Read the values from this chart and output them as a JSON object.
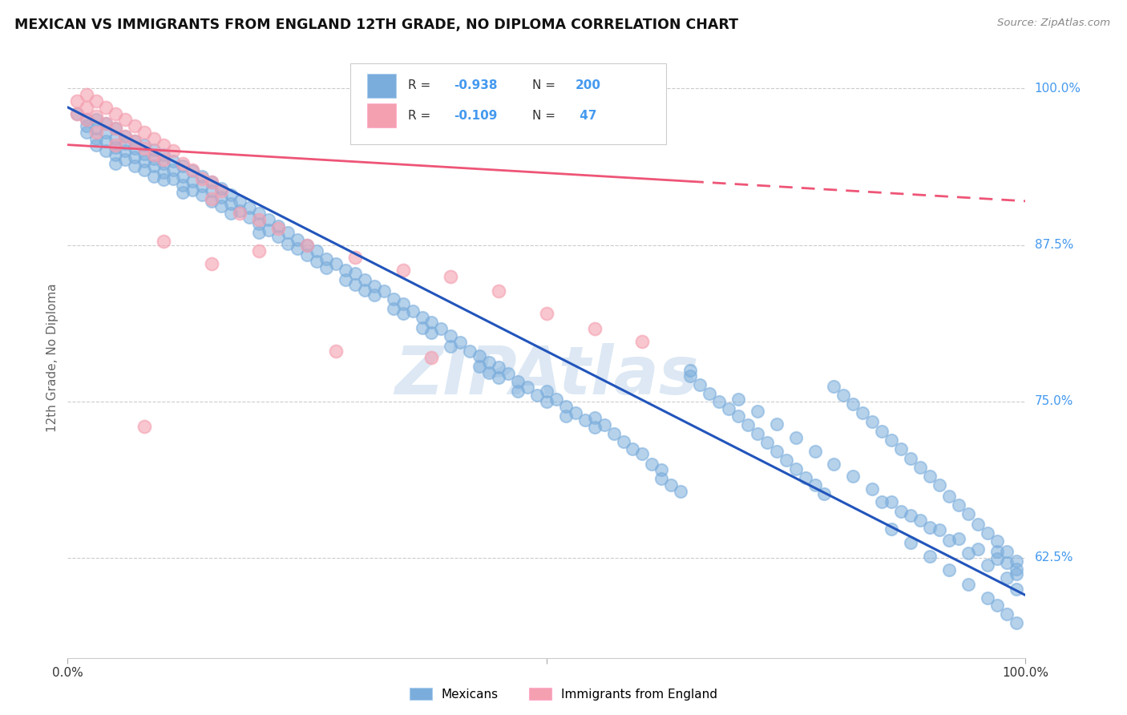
{
  "title": "MEXICAN VS IMMIGRANTS FROM ENGLAND 12TH GRADE, NO DIPLOMA CORRELATION CHART",
  "source": "Source: ZipAtlas.com",
  "ylabel": "12th Grade, No Diploma",
  "ylabel_right_ticks": [
    "100.0%",
    "87.5%",
    "75.0%",
    "62.5%"
  ],
  "ylabel_right_positions": [
    1.0,
    0.875,
    0.75,
    0.625
  ],
  "legend_label_blue": "Mexicans",
  "legend_label_pink": "Immigrants from England",
  "blue_color": "#7AADDC",
  "pink_color": "#F4A0B0",
  "trendline_blue_color": "#2255BB",
  "trendline_pink_color": "#EE5577",
  "watermark": "ZIPAtlas",
  "blue_r": "-0.938",
  "blue_n": "200",
  "pink_r": "-0.109",
  "pink_n": " 47",
  "xmin": 0.0,
  "xmax": 1.0,
  "ymin": 0.545,
  "ymax": 1.025,
  "blue_trend_x0": 0.0,
  "blue_trend_y0": 0.985,
  "blue_trend_x1": 1.0,
  "blue_trend_y1": 0.595,
  "pink_trend_x0": 0.0,
  "pink_trend_y0": 0.955,
  "pink_trend_x1": 1.0,
  "pink_trend_y1": 0.91,
  "pink_trend_solid_x1": 0.65,
  "blue_scatter_x": [
    0.01,
    0.02,
    0.02,
    0.02,
    0.03,
    0.03,
    0.03,
    0.03,
    0.04,
    0.04,
    0.04,
    0.04,
    0.05,
    0.05,
    0.05,
    0.05,
    0.05,
    0.06,
    0.06,
    0.06,
    0.06,
    0.07,
    0.07,
    0.07,
    0.07,
    0.08,
    0.08,
    0.08,
    0.08,
    0.09,
    0.09,
    0.09,
    0.09,
    0.1,
    0.1,
    0.1,
    0.1,
    0.11,
    0.11,
    0.11,
    0.12,
    0.12,
    0.12,
    0.12,
    0.13,
    0.13,
    0.13,
    0.14,
    0.14,
    0.14,
    0.15,
    0.15,
    0.15,
    0.16,
    0.16,
    0.16,
    0.17,
    0.17,
    0.17,
    0.18,
    0.18,
    0.19,
    0.19,
    0.2,
    0.2,
    0.2,
    0.21,
    0.21,
    0.22,
    0.22,
    0.23,
    0.23,
    0.24,
    0.24,
    0.25,
    0.25,
    0.26,
    0.26,
    0.27,
    0.27,
    0.28,
    0.29,
    0.29,
    0.3,
    0.3,
    0.31,
    0.31,
    0.32,
    0.32,
    0.33,
    0.34,
    0.34,
    0.35,
    0.35,
    0.36,
    0.37,
    0.37,
    0.38,
    0.38,
    0.39,
    0.4,
    0.4,
    0.41,
    0.42,
    0.43,
    0.43,
    0.44,
    0.44,
    0.45,
    0.45,
    0.46,
    0.47,
    0.47,
    0.48,
    0.49,
    0.5,
    0.5,
    0.51,
    0.52,
    0.52,
    0.53,
    0.54,
    0.55,
    0.55,
    0.56,
    0.57,
    0.58,
    0.59,
    0.6,
    0.61,
    0.62,
    0.62,
    0.63,
    0.64,
    0.65,
    0.65,
    0.66,
    0.67,
    0.68,
    0.69,
    0.7,
    0.71,
    0.72,
    0.73,
    0.74,
    0.75,
    0.76,
    0.77,
    0.78,
    0.79,
    0.8,
    0.81,
    0.82,
    0.83,
    0.84,
    0.85,
    0.86,
    0.87,
    0.88,
    0.89,
    0.9,
    0.91,
    0.92,
    0.93,
    0.94,
    0.95,
    0.96,
    0.97,
    0.98,
    0.99,
    0.86,
    0.88,
    0.9,
    0.92,
    0.94,
    0.96,
    0.97,
    0.98,
    0.99,
    0.97,
    0.98,
    0.99,
    0.85,
    0.87,
    0.89,
    0.91,
    0.93,
    0.95,
    0.97,
    0.99,
    0.7,
    0.72,
    0.74,
    0.76,
    0.78,
    0.8,
    0.82,
    0.84,
    0.86,
    0.88,
    0.9,
    0.92,
    0.94,
    0.96,
    0.98,
    0.99
  ],
  "blue_scatter_y": [
    0.98,
    0.975,
    0.97,
    0.965,
    0.975,
    0.968,
    0.96,
    0.955,
    0.972,
    0.965,
    0.958,
    0.95,
    0.968,
    0.96,
    0.953,
    0.947,
    0.94,
    0.962,
    0.956,
    0.95,
    0.943,
    0.958,
    0.952,
    0.945,
    0.938,
    0.955,
    0.948,
    0.942,
    0.935,
    0.951,
    0.944,
    0.938,
    0.93,
    0.947,
    0.94,
    0.933,
    0.927,
    0.942,
    0.935,
    0.928,
    0.938,
    0.93,
    0.923,
    0.917,
    0.934,
    0.926,
    0.919,
    0.93,
    0.922,
    0.915,
    0.925,
    0.918,
    0.91,
    0.92,
    0.913,
    0.906,
    0.915,
    0.908,
    0.9,
    0.91,
    0.902,
    0.905,
    0.897,
    0.9,
    0.892,
    0.885,
    0.895,
    0.887,
    0.89,
    0.882,
    0.885,
    0.876,
    0.879,
    0.872,
    0.875,
    0.867,
    0.87,
    0.862,
    0.864,
    0.857,
    0.86,
    0.855,
    0.847,
    0.852,
    0.843,
    0.847,
    0.839,
    0.842,
    0.835,
    0.838,
    0.832,
    0.824,
    0.828,
    0.82,
    0.822,
    0.817,
    0.809,
    0.813,
    0.805,
    0.808,
    0.802,
    0.794,
    0.797,
    0.79,
    0.786,
    0.778,
    0.781,
    0.773,
    0.777,
    0.769,
    0.772,
    0.766,
    0.758,
    0.761,
    0.755,
    0.758,
    0.75,
    0.752,
    0.746,
    0.738,
    0.741,
    0.735,
    0.737,
    0.729,
    0.731,
    0.724,
    0.718,
    0.712,
    0.708,
    0.7,
    0.695,
    0.688,
    0.683,
    0.678,
    0.775,
    0.77,
    0.763,
    0.756,
    0.75,
    0.744,
    0.738,
    0.731,
    0.724,
    0.717,
    0.71,
    0.703,
    0.696,
    0.689,
    0.683,
    0.676,
    0.762,
    0.755,
    0.748,
    0.741,
    0.734,
    0.726,
    0.719,
    0.712,
    0.704,
    0.697,
    0.69,
    0.683,
    0.674,
    0.667,
    0.66,
    0.652,
    0.645,
    0.638,
    0.63,
    0.622,
    0.648,
    0.637,
    0.626,
    0.615,
    0.604,
    0.593,
    0.587,
    0.58,
    0.573,
    0.63,
    0.621,
    0.612,
    0.67,
    0.662,
    0.655,
    0.647,
    0.64,
    0.632,
    0.624,
    0.616,
    0.752,
    0.742,
    0.732,
    0.721,
    0.71,
    0.7,
    0.69,
    0.68,
    0.67,
    0.659,
    0.649,
    0.639,
    0.629,
    0.619,
    0.609,
    0.6
  ],
  "pink_scatter_x": [
    0.01,
    0.01,
    0.02,
    0.02,
    0.02,
    0.03,
    0.03,
    0.03,
    0.04,
    0.04,
    0.05,
    0.05,
    0.05,
    0.06,
    0.06,
    0.07,
    0.07,
    0.08,
    0.08,
    0.09,
    0.09,
    0.1,
    0.1,
    0.11,
    0.12,
    0.13,
    0.14,
    0.15,
    0.15,
    0.16,
    0.18,
    0.2,
    0.22,
    0.25,
    0.28,
    0.3,
    0.35,
    0.38,
    0.4,
    0.45,
    0.5,
    0.55,
    0.6,
    0.15,
    0.2,
    0.1,
    0.08
  ],
  "pink_scatter_y": [
    0.99,
    0.98,
    0.995,
    0.985,
    0.975,
    0.99,
    0.978,
    0.965,
    0.985,
    0.972,
    0.98,
    0.968,
    0.955,
    0.975,
    0.962,
    0.97,
    0.958,
    0.965,
    0.952,
    0.96,
    0.947,
    0.955,
    0.943,
    0.95,
    0.94,
    0.935,
    0.928,
    0.925,
    0.912,
    0.918,
    0.9,
    0.895,
    0.888,
    0.875,
    0.79,
    0.865,
    0.855,
    0.785,
    0.85,
    0.838,
    0.82,
    0.808,
    0.798,
    0.86,
    0.87,
    0.878,
    0.73
  ]
}
